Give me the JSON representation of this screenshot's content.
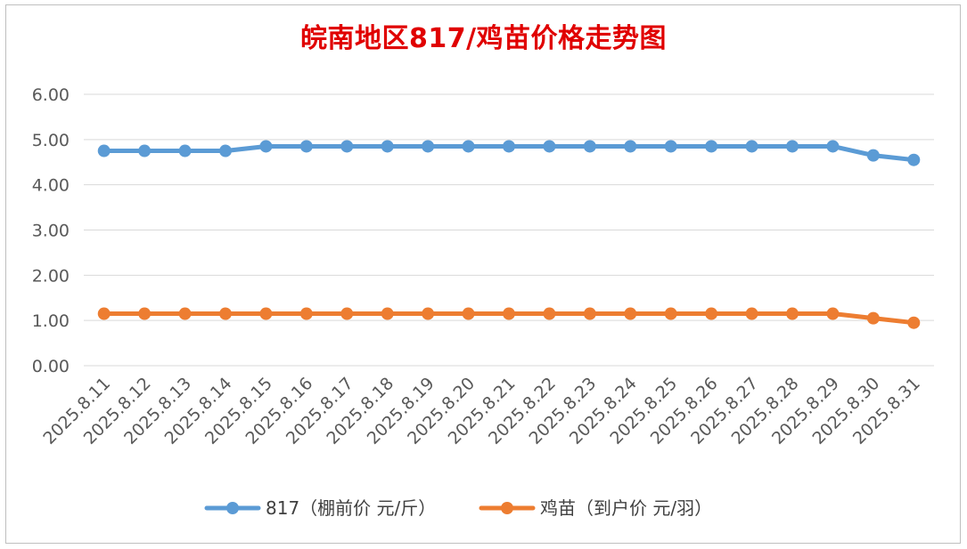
{
  "chart_data": {
    "type": "line",
    "title": "皖南地区817/鸡苗价格走势图",
    "categories": [
      "2025.8.11",
      "2025.8.12",
      "2025.8.13",
      "2025.8.14",
      "2025.8.15",
      "2025.8.16",
      "2025.8.17",
      "2025.8.18",
      "2025.8.19",
      "2025.8.20",
      "2025.8.21",
      "2025.8.22",
      "2025.8.23",
      "2025.8.24",
      "2025.8.25",
      "2025.8.26",
      "2025.8.27",
      "2025.8.28",
      "2025.8.29",
      "2025.8.30",
      "2025.8.31"
    ],
    "yticks": [
      "0.00",
      "1.00",
      "2.00",
      "3.00",
      "4.00",
      "5.00",
      "6.00"
    ],
    "ylim": [
      0,
      6
    ],
    "grid": true,
    "legend_position": "bottom",
    "series": [
      {
        "name": "817（棚前价 元/斤）",
        "color": "#5b9bd5",
        "values": [
          4.75,
          4.75,
          4.75,
          4.75,
          4.85,
          4.85,
          4.85,
          4.85,
          4.85,
          4.85,
          4.85,
          4.85,
          4.85,
          4.85,
          4.85,
          4.85,
          4.85,
          4.85,
          4.85,
          4.65,
          4.55
        ]
      },
      {
        "name": "鸡苗（到户价 元/羽）",
        "color": "#ed7d31",
        "values": [
          1.15,
          1.15,
          1.15,
          1.15,
          1.15,
          1.15,
          1.15,
          1.15,
          1.15,
          1.15,
          1.15,
          1.15,
          1.15,
          1.15,
          1.15,
          1.15,
          1.15,
          1.15,
          1.15,
          1.05,
          0.95
        ]
      }
    ]
  }
}
